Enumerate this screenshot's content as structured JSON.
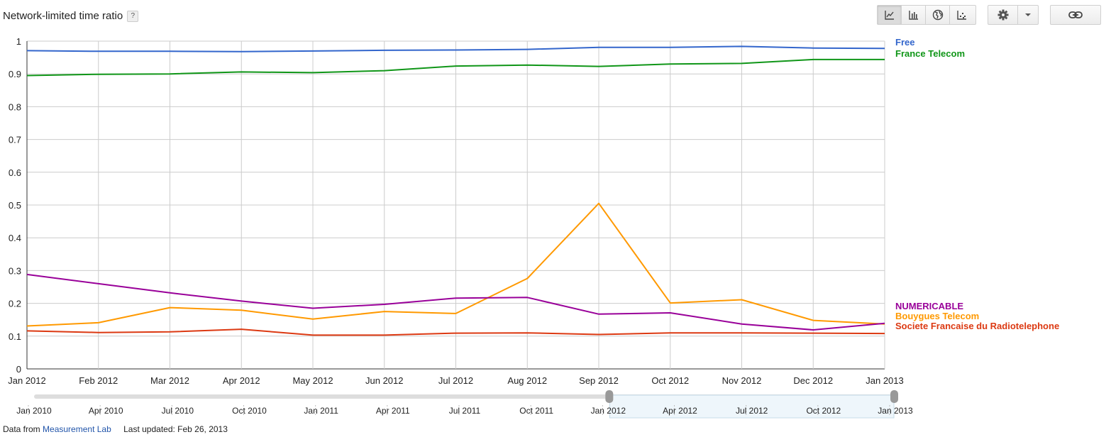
{
  "header": {
    "title": "Network-limited time ratio",
    "help_label": "?"
  },
  "toolbar": {
    "view_buttons": [
      {
        "icon": "line-chart-icon",
        "active": true
      },
      {
        "icon": "bar-chart-icon",
        "active": false
      },
      {
        "icon": "globe-map-icon",
        "active": false
      },
      {
        "icon": "scatter-chart-icon",
        "active": false
      }
    ],
    "settings_icon": "gear-icon",
    "settings_dropdown_icon": "caret-down-icon",
    "link_icon": "link-icon"
  },
  "chart_data": {
    "type": "line",
    "title": "Network-limited time ratio",
    "x": [
      "Jan 2012",
      "Feb 2012",
      "Mar 2012",
      "Apr 2012",
      "May 2012",
      "Jun 2012",
      "Jul 2012",
      "Aug 2012",
      "Sep 2012",
      "Oct 2012",
      "Nov 2012",
      "Dec 2012",
      "Jan 2013"
    ],
    "ylim": [
      0,
      1
    ],
    "yticks": [
      "0",
      "0.1",
      "0.2",
      "0.3",
      "0.4",
      "0.5",
      "0.6",
      "0.7",
      "0.8",
      "0.9",
      "1"
    ],
    "grid": true,
    "legend_position": "right",
    "series": [
      {
        "name": "Free",
        "color": "#3366cc",
        "values": [
          0.971,
          0.969,
          0.969,
          0.968,
          0.97,
          0.972,
          0.973,
          0.975,
          0.981,
          0.981,
          0.984,
          0.979,
          0.978
        ]
      },
      {
        "name": "France Telecom",
        "color": "#109618",
        "values": [
          0.895,
          0.899,
          0.9,
          0.906,
          0.904,
          0.91,
          0.924,
          0.927,
          0.923,
          0.93,
          0.932,
          0.944,
          0.944
        ]
      },
      {
        "name": "NUMERICABLE",
        "color": "#990099",
        "values": [
          0.288,
          0.26,
          0.232,
          0.207,
          0.185,
          0.197,
          0.216,
          0.218,
          0.167,
          0.171,
          0.137,
          0.119,
          0.139
        ]
      },
      {
        "name": "Bouygues Telecom",
        "color": "#ff9900",
        "values": [
          0.131,
          0.141,
          0.187,
          0.179,
          0.152,
          0.175,
          0.169,
          0.276,
          0.505,
          0.201,
          0.211,
          0.148,
          0.137
        ]
      },
      {
        "name": "Societe Francaise du Radiotelephone",
        "color": "#dc3912",
        "values": [
          0.116,
          0.111,
          0.113,
          0.121,
          0.103,
          0.103,
          0.109,
          0.11,
          0.105,
          0.11,
          0.11,
          0.109,
          0.108
        ]
      }
    ]
  },
  "timeline": {
    "labels": [
      "Jan 2010",
      "Apr 2010",
      "Jul 2010",
      "Oct 2010",
      "Jan 2011",
      "Apr 2011",
      "Jul 2011",
      "Oct 2011",
      "Jan 2012",
      "Apr 2012",
      "Jul 2012",
      "Oct 2012",
      "Jan 2013"
    ],
    "selected_range": [
      "Jan 2012",
      "Jan 2013"
    ]
  },
  "footer": {
    "data_from_label": "Data from",
    "source_link": "Measurement Lab",
    "last_updated": "Last updated: Feb 26, 2013"
  }
}
